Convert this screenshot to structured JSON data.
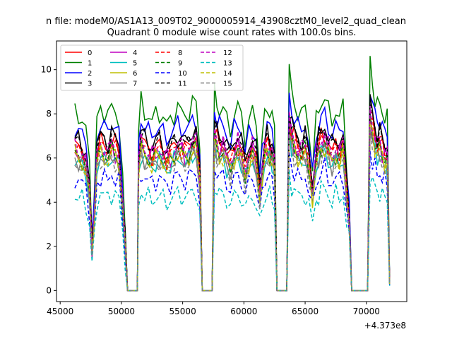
{
  "figure": {
    "suptitle": "n file: modeM0/AS1A13_009T02_9000005914_43908cztM0_level2_quad_clean",
    "offset_label": "+4.373e8"
  },
  "chart_data": {
    "type": "line",
    "title": "Quadrant 0 module wise count rates with 100.0s bins.",
    "xlabel": "",
    "ylabel": "",
    "xlim": [
      44700,
      73300
    ],
    "ylim": [
      -0.5,
      11.3
    ],
    "x_offset": 437300000,
    "x_ticks": [
      45000,
      50000,
      55000,
      60000,
      65000,
      70000
    ],
    "x_tick_labels": [
      "45000",
      "50000",
      "55000",
      "60000",
      "65000",
      "70000"
    ],
    "y_ticks": [
      0,
      2,
      4,
      6,
      8,
      10
    ],
    "y_tick_labels": [
      "0",
      "2",
      "4",
      "6",
      "8",
      "10"
    ],
    "grid": false,
    "legend_position": "top-left",
    "legend_columns": 4,
    "x": [
      46200,
      46500,
      46800,
      47100,
      47400,
      47600,
      47800,
      48000,
      48300,
      48600,
      48900,
      49200,
      49500,
      49800,
      50100,
      50300,
      50500,
      50700,
      50900,
      51100,
      51300,
      51400,
      51600,
      51900,
      52200,
      52500,
      52800,
      53100,
      53400,
      53700,
      54000,
      54300,
      54600,
      54900,
      55200,
      55500,
      55800,
      56100,
      56400,
      56600,
      56800,
      57000,
      57200,
      57400,
      57600,
      57800,
      58000,
      58300,
      58600,
      58900,
      59200,
      59500,
      59800,
      60100,
      60400,
      60700,
      61000,
      61300,
      61500,
      61700,
      61900,
      62100,
      62300,
      62500,
      62700,
      62900,
      63100,
      63300,
      63500,
      63700,
      63900,
      64100,
      64400,
      64700,
      65000,
      65300,
      65600,
      65900,
      66100,
      66300,
      66600,
      66900,
      67200,
      67500,
      67800,
      68100,
      68400,
      68600,
      68800,
      68900,
      69100,
      69300,
      69500,
      69700,
      69900,
      70100,
      70300,
      70500,
      70700,
      70900,
      71100,
      71300,
      71500,
      71700,
      71900
    ],
    "series": [
      {
        "name": "0",
        "color": "#ff0000",
        "dashed": false,
        "baseline": 6.6,
        "peak": 0
      },
      {
        "name": "1",
        "color": "#008000",
        "dashed": false,
        "baseline": 8.1,
        "peak": 1
      },
      {
        "name": "2",
        "color": "#0000ff",
        "dashed": false,
        "baseline": 7.4,
        "peak": 0
      },
      {
        "name": "3",
        "color": "#000000",
        "dashed": false,
        "baseline": 6.9,
        "peak": 0
      },
      {
        "name": "4",
        "color": "#bf00bf",
        "dashed": false,
        "baseline": 6.3,
        "peak": 0
      },
      {
        "name": "5",
        "color": "#00bfbf",
        "dashed": false,
        "baseline": 5.9,
        "peak": 0
      },
      {
        "name": "6",
        "color": "#bfbf00",
        "dashed": false,
        "baseline": 6.1,
        "peak": 0
      },
      {
        "name": "7",
        "color": "#808080",
        "dashed": false,
        "baseline": 6.0,
        "peak": 0
      },
      {
        "name": "8",
        "color": "#ff0000",
        "dashed": true,
        "baseline": 6.4,
        "peak": 0
      },
      {
        "name": "9",
        "color": "#008000",
        "dashed": true,
        "baseline": 6.2,
        "peak": 0
      },
      {
        "name": "10",
        "color": "#0000ff",
        "dashed": true,
        "baseline": 5.1,
        "peak": 0
      },
      {
        "name": "11",
        "color": "#000000",
        "dashed": true,
        "baseline": 6.8,
        "peak": 0
      },
      {
        "name": "12",
        "color": "#bf00bf",
        "dashed": true,
        "baseline": 6.5,
        "peak": 0
      },
      {
        "name": "13",
        "color": "#00bfbf",
        "dashed": true,
        "baseline": 4.3,
        "peak": 0
      },
      {
        "name": "14",
        "color": "#bfbf00",
        "dashed": true,
        "baseline": 6.0,
        "peak": 0
      },
      {
        "name": "15",
        "color": "#808080",
        "dashed": true,
        "baseline": 5.8,
        "peak": 0
      }
    ],
    "profile": [
      1.0,
      0.98,
      0.95,
      0.9,
      0.7,
      0.3,
      0.55,
      0.95,
      1.02,
      1.0,
      0.97,
      1.03,
      1.0,
      0.96,
      0.6,
      0.35,
      0.0,
      0.0,
      0.0,
      0.0,
      0.0,
      0.9,
      1.05,
      1.0,
      0.97,
      0.95,
      0.98,
      1.0,
      0.96,
      0.93,
      0.95,
      0.99,
      1.02,
      1.0,
      0.97,
      1.0,
      1.04,
      1.05,
      0.8,
      0.0,
      0.0,
      0.0,
      0.0,
      0.0,
      1.1,
      1.05,
      1.0,
      1.02,
      0.95,
      0.9,
      0.98,
      1.03,
      0.97,
      0.85,
      0.95,
      1.0,
      0.92,
      0.7,
      0.85,
      0.98,
      1.02,
      1.0,
      0.97,
      0.9,
      0.0,
      0.0,
      0.0,
      0.0,
      0.0,
      1.2,
      1.1,
      1.05,
      1.0,
      0.98,
      1.02,
      0.9,
      0.7,
      0.95,
      1.0,
      1.05,
      1.08,
      1.0,
      0.95,
      1.0,
      0.97,
      1.02,
      0.7,
      0.5,
      0.0,
      0.0,
      0.0,
      0.0,
      0.0,
      0.0,
      0.0,
      0.0,
      1.25,
      1.15,
      1.08,
      1.02,
      1.05,
      1.0,
      0.97,
      0.95,
      0.05
    ]
  }
}
